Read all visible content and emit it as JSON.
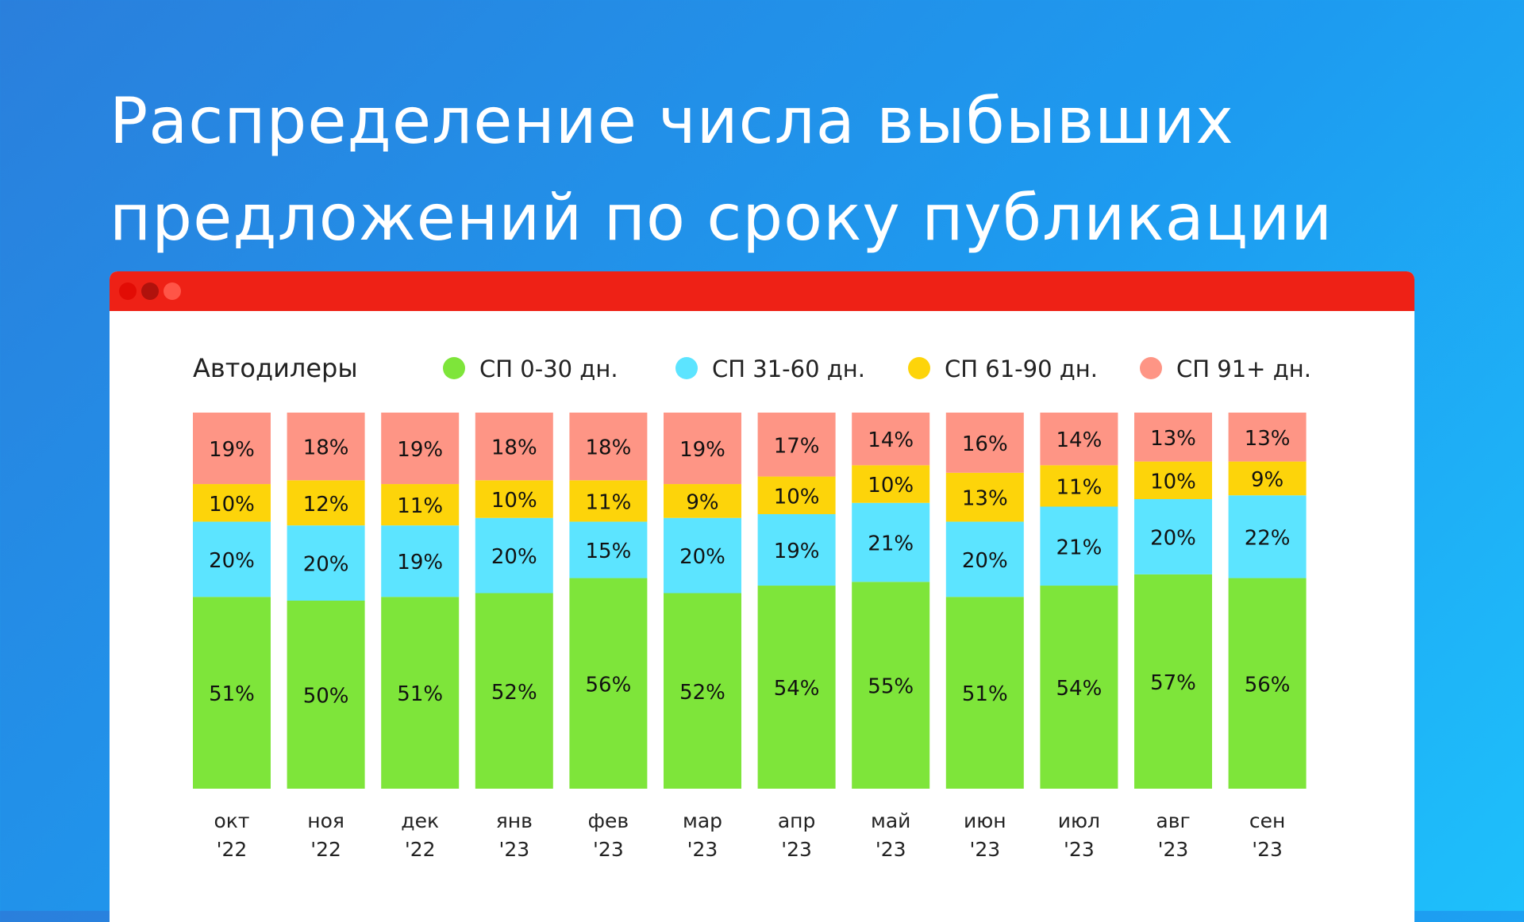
{
  "title_lines": [
    "Распределение числа выбывших",
    "предложений по сроку публикации"
  ],
  "colors": {
    "background_start": "#2a7fdc",
    "background_end": "#1ec0fb",
    "window_bar": "#ee2116"
  },
  "chart_data": {
    "type": "bar",
    "stacked": true,
    "title": "Распределение числа выбывших предложений по сроку публикации",
    "subtitle": "Автодилеры",
    "legend_position": "top",
    "categories": [
      [
        "окт",
        "'22"
      ],
      [
        "ноя",
        "'22"
      ],
      [
        "дек",
        "'22"
      ],
      [
        "янв",
        "'23"
      ],
      [
        "фев",
        "'23"
      ],
      [
        "мар",
        "'23"
      ],
      [
        "апр",
        "'23"
      ],
      [
        "май",
        "'23"
      ],
      [
        "июн",
        "'23"
      ],
      [
        "июл",
        "'23"
      ],
      [
        "авг",
        "'23"
      ],
      [
        "сен",
        "'23"
      ]
    ],
    "series": [
      {
        "name": "СП 0-30 дн.",
        "color": "#7ee53a",
        "values": [
          51,
          50,
          51,
          52,
          56,
          52,
          54,
          55,
          51,
          54,
          57,
          56
        ]
      },
      {
        "name": "СП 31-60 дн.",
        "color": "#5ce4ff",
        "values": [
          20,
          20,
          19,
          20,
          15,
          20,
          19,
          21,
          20,
          21,
          20,
          22
        ]
      },
      {
        "name": "СП 61-90 дн.",
        "color": "#fdd40a",
        "values": [
          10,
          12,
          11,
          10,
          11,
          9,
          10,
          10,
          13,
          11,
          10,
          9
        ]
      },
      {
        "name": "СП 91+ дн.",
        "color": "#fe9585",
        "values": [
          19,
          18,
          19,
          18,
          18,
          19,
          17,
          14,
          16,
          14,
          13,
          13
        ]
      }
    ],
    "value_suffix": "%",
    "ylim": [
      0,
      100
    ],
    "grid": false
  }
}
